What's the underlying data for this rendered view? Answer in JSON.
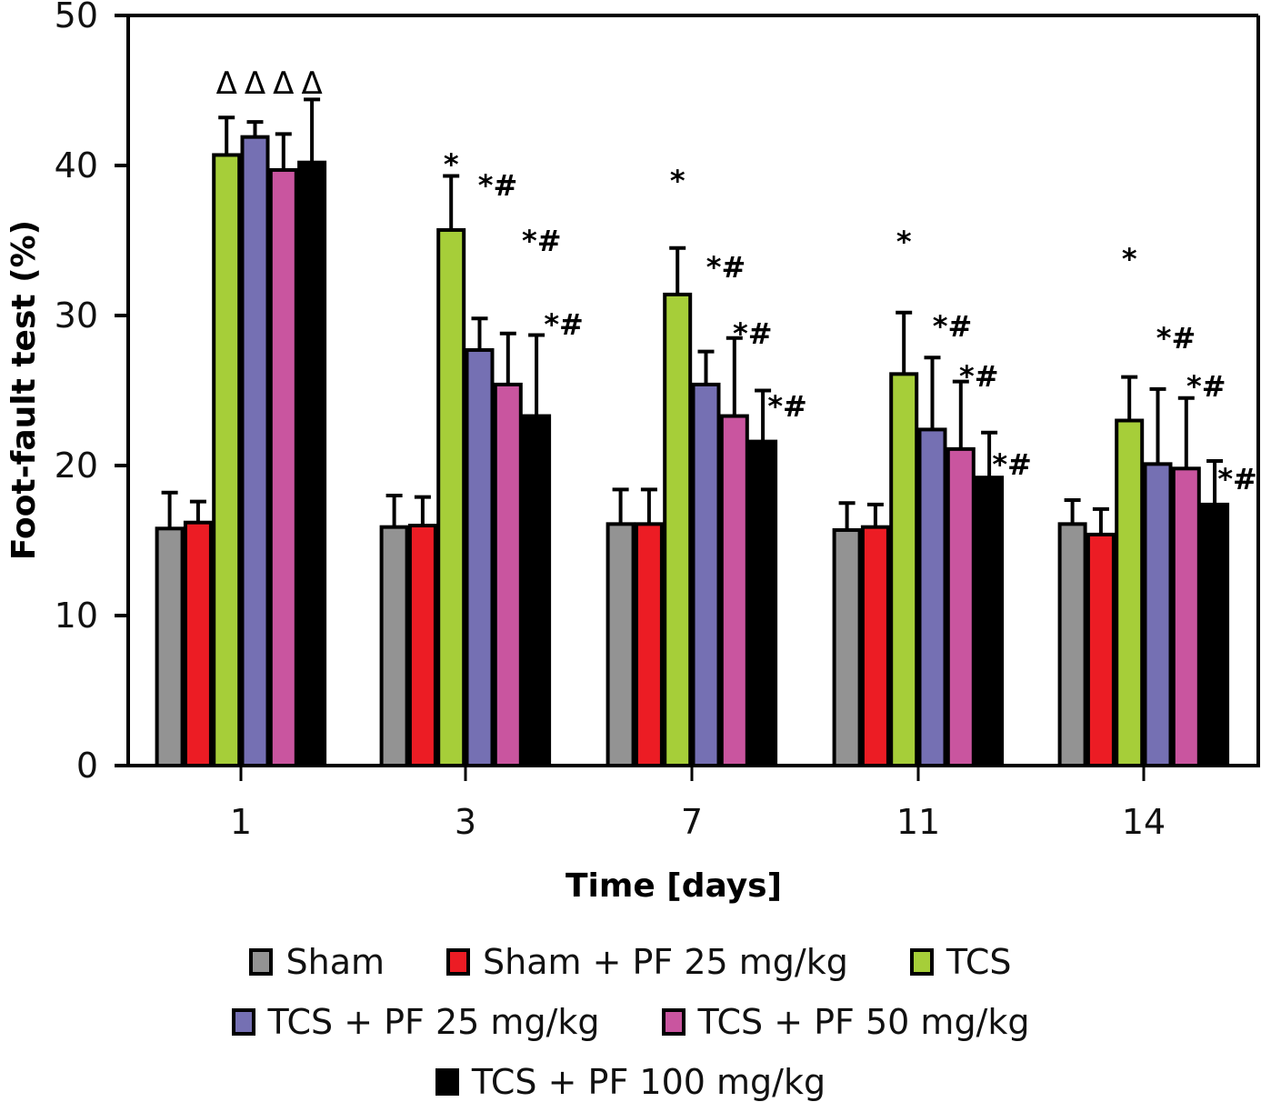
{
  "chart_data": {
    "type": "bar",
    "title": "",
    "xlabel": "Time [days]",
    "ylabel": "Foot-fault test (%)",
    "ylim": [
      0,
      50
    ],
    "yticks": [
      0,
      10,
      20,
      30,
      40,
      50
    ],
    "categories": [
      "1",
      "3",
      "7",
      "11",
      "14"
    ],
    "grid": false,
    "legend_position": "bottom",
    "series": [
      {
        "name": "Sham",
        "color": "#939393",
        "values": [
          15.8,
          15.9,
          16.1,
          15.7,
          16.1
        ],
        "error_upper": [
          18.2,
          18.0,
          18.4,
          17.5,
          17.7
        ]
      },
      {
        "name": "Sham + PF 25 mg/kg",
        "color": "#ec1c24",
        "values": [
          16.2,
          16.0,
          16.1,
          15.9,
          15.4
        ],
        "error_upper": [
          17.6,
          17.9,
          18.4,
          17.4,
          17.1
        ]
      },
      {
        "name": "TCS",
        "color": "#a6ce39",
        "values": [
          40.7,
          35.7,
          31.4,
          26.1,
          23.0
        ],
        "error_upper": [
          43.2,
          39.3,
          34.5,
          30.2,
          25.9
        ]
      },
      {
        "name": "TCS + PF 25 mg/kg",
        "color": "#7570b3",
        "values": [
          41.9,
          27.7,
          25.4,
          22.4,
          20.1
        ],
        "error_upper": [
          42.9,
          29.8,
          27.6,
          27.2,
          25.1
        ]
      },
      {
        "name": "TCS + PF 50 mg/kg",
        "color": "#c9559f",
        "values": [
          39.7,
          25.4,
          23.3,
          21.1,
          19.8
        ],
        "error_upper": [
          42.1,
          28.8,
          28.5,
          25.6,
          24.5
        ]
      },
      {
        "name": "TCS + PF 100 mg/kg",
        "color": "#000000",
        "values": [
          40.2,
          23.3,
          21.6,
          19.2,
          17.4
        ],
        "error_upper": [
          44.4,
          28.7,
          25.0,
          22.2,
          20.3
        ]
      }
    ],
    "annotations": [
      {
        "category": "1",
        "series": 2,
        "text": "Δ"
      },
      {
        "category": "1",
        "series": 3,
        "text": "Δ"
      },
      {
        "category": "1",
        "series": 4,
        "text": "Δ"
      },
      {
        "category": "1",
        "series": 5,
        "text": "Δ"
      },
      {
        "category": "3",
        "series": 2,
        "text": "*"
      },
      {
        "category": "3",
        "series": 3,
        "text": "*#"
      },
      {
        "category": "3",
        "series": 4,
        "text": "*#"
      },
      {
        "category": "3",
        "series": 5,
        "text": "*#"
      },
      {
        "category": "7",
        "series": 2,
        "text": "*"
      },
      {
        "category": "7",
        "series": 3,
        "text": "*#"
      },
      {
        "category": "7",
        "series": 4,
        "text": "*#"
      },
      {
        "category": "7",
        "series": 5,
        "text": "*#"
      },
      {
        "category": "11",
        "series": 2,
        "text": "*"
      },
      {
        "category": "11",
        "series": 3,
        "text": "*#"
      },
      {
        "category": "11",
        "series": 4,
        "text": "*#"
      },
      {
        "category": "11",
        "series": 5,
        "text": "*#"
      },
      {
        "category": "14",
        "series": 2,
        "text": "*"
      },
      {
        "category": "14",
        "series": 3,
        "text": "*#"
      },
      {
        "category": "14",
        "series": 4,
        "text": "*#"
      },
      {
        "category": "14",
        "series": 5,
        "text": "*#"
      }
    ]
  },
  "legend": {
    "rows": [
      [
        0,
        1,
        2
      ],
      [
        3,
        4
      ],
      [
        5
      ]
    ]
  }
}
